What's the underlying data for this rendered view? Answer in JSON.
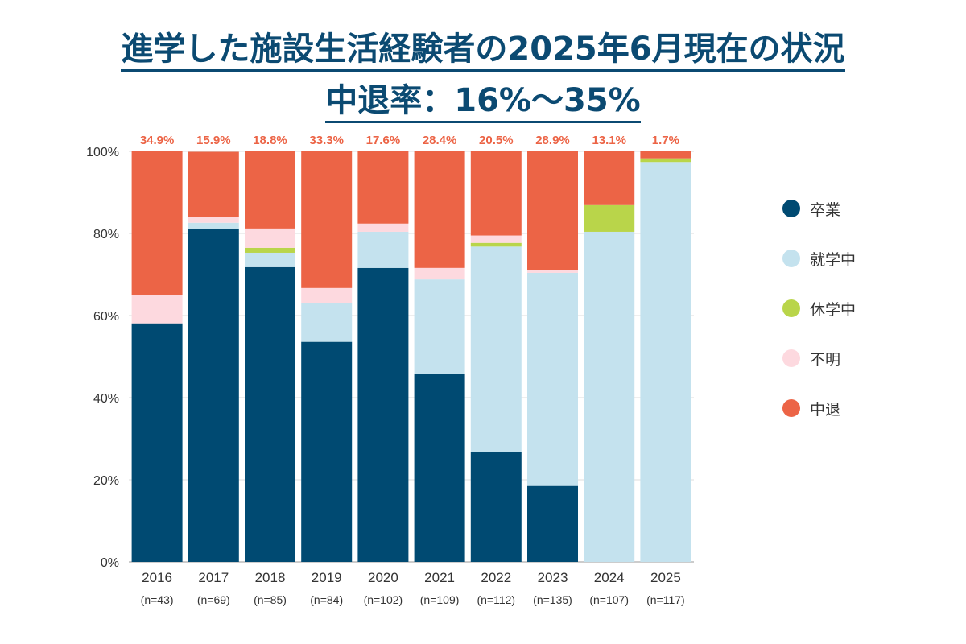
{
  "title": "進学した施設生活経験者の2025年6月現在の状況",
  "subtitle": "中退率：16%〜35%",
  "chart_data": {
    "type": "bar",
    "stacked": true,
    "categories": [
      "2016",
      "2017",
      "2018",
      "2019",
      "2020",
      "2021",
      "2022",
      "2023",
      "2024",
      "2025"
    ],
    "category_sublabels": [
      "(n=43)",
      "(n=69)",
      "(n=85)",
      "(n=84)",
      "(n=102)",
      "(n=109)",
      "(n=112)",
      "(n=135)",
      "(n=107)",
      "(n=117)"
    ],
    "series": [
      {
        "name": "卒業",
        "color": "#004a72",
        "values": [
          58.1,
          81.2,
          71.8,
          53.6,
          71.6,
          45.9,
          26.8,
          18.5,
          0,
          0
        ]
      },
      {
        "name": "就学中",
        "color": "#c4e2ee",
        "values": [
          0,
          1.4,
          3.5,
          9.5,
          8.8,
          22.9,
          50.0,
          51.9,
          80.4,
          97.4
        ]
      },
      {
        "name": "休学中",
        "color": "#b9d54a",
        "values": [
          0,
          0,
          1.2,
          0,
          0,
          0,
          0.9,
          0,
          6.5,
          0.9
        ]
      },
      {
        "name": "不明",
        "color": "#fdd9df",
        "values": [
          7.0,
          1.4,
          4.7,
          3.6,
          2.0,
          2.8,
          1.8,
          0.7,
          0,
          0
        ]
      },
      {
        "name": "中退",
        "color": "#ec6446",
        "values": [
          34.9,
          15.9,
          18.8,
          33.3,
          17.6,
          28.4,
          20.5,
          28.9,
          13.1,
          1.7
        ]
      }
    ],
    "data_labels": [
      "34.9%",
      "15.9%",
      "18.8%",
      "33.3%",
      "17.6%",
      "28.4%",
      "20.5%",
      "28.9%",
      "13.1%",
      "1.7%"
    ],
    "yticks": [
      "0%",
      "20%",
      "40%",
      "60%",
      "80%",
      "100%"
    ],
    "ylim": [
      0,
      100
    ],
    "grid": true,
    "legend_position": "right"
  }
}
